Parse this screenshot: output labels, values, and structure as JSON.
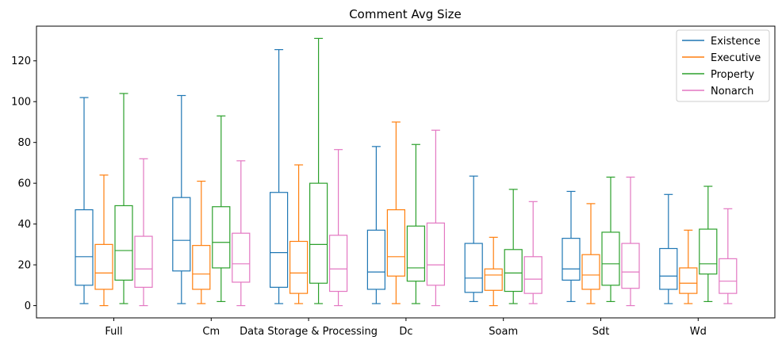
{
  "chart_data": {
    "type": "box",
    "title": "Comment Avg Size",
    "xlabel": "",
    "ylabel": "",
    "ylim": [
      -6,
      137
    ],
    "yticks": [
      0,
      20,
      40,
      60,
      80,
      100,
      120
    ],
    "ytick_labels": [
      "0",
      "20",
      "40",
      "60",
      "80",
      "100",
      "120"
    ],
    "categories": [
      "Full",
      "Cm",
      "Data Storage & Processing",
      "Dc",
      "Soam",
      "Sdt",
      "Wd"
    ],
    "grid": false,
    "legend_position": "top-right",
    "series": [
      {
        "name": "Existence",
        "color": "#1f77b4",
        "boxes": [
          {
            "whislo": 1,
            "q1": 10,
            "med": 24,
            "q3": 47,
            "whishi": 102
          },
          {
            "whislo": 1,
            "q1": 17,
            "med": 32,
            "q3": 53,
            "whishi": 103
          },
          {
            "whislo": 1,
            "q1": 9,
            "med": 26,
            "q3": 55.5,
            "whishi": 125.5
          },
          {
            "whislo": 1,
            "q1": 8,
            "med": 16.5,
            "q3": 37,
            "whishi": 78
          },
          {
            "whislo": 2,
            "q1": 6.5,
            "med": 13.5,
            "q3": 30.5,
            "whishi": 63.5
          },
          {
            "whislo": 2,
            "q1": 12.5,
            "med": 18,
            "q3": 33,
            "whishi": 56
          },
          {
            "whislo": 1,
            "q1": 8,
            "med": 14.5,
            "q3": 28,
            "whishi": 54.5
          }
        ]
      },
      {
        "name": "Executive",
        "color": "#ff7f0e",
        "boxes": [
          {
            "whislo": 0,
            "q1": 8,
            "med": 16,
            "q3": 30,
            "whishi": 64
          },
          {
            "whislo": 1,
            "q1": 8,
            "med": 15.5,
            "q3": 29.5,
            "whishi": 61
          },
          {
            "whislo": 1,
            "q1": 6,
            "med": 16,
            "q3": 31.5,
            "whishi": 69
          },
          {
            "whislo": 1,
            "q1": 14.5,
            "med": 24,
            "q3": 47,
            "whishi": 90
          },
          {
            "whislo": 0,
            "q1": 7.5,
            "med": 15,
            "q3": 18,
            "whishi": 33.5
          },
          {
            "whislo": 1,
            "q1": 8,
            "med": 15,
            "q3": 25,
            "whishi": 50
          },
          {
            "whislo": 1,
            "q1": 6,
            "med": 11,
            "q3": 18.5,
            "whishi": 37
          }
        ]
      },
      {
        "name": "Property",
        "color": "#2ca02c",
        "boxes": [
          {
            "whislo": 1,
            "q1": 12.5,
            "med": 27,
            "q3": 49,
            "whishi": 104
          },
          {
            "whislo": 2,
            "q1": 18.5,
            "med": 31,
            "q3": 48.5,
            "whishi": 93
          },
          {
            "whislo": 1,
            "q1": 11,
            "med": 30,
            "q3": 60,
            "whishi": 131
          },
          {
            "whislo": 1,
            "q1": 12,
            "med": 18.5,
            "q3": 39,
            "whishi": 79
          },
          {
            "whislo": 1,
            "q1": 7,
            "med": 16,
            "q3": 27.5,
            "whishi": 57
          },
          {
            "whislo": 2,
            "q1": 10,
            "med": 20.5,
            "q3": 36,
            "whishi": 63
          },
          {
            "whislo": 2,
            "q1": 15.5,
            "med": 20.5,
            "q3": 37.5,
            "whishi": 58.5
          }
        ]
      },
      {
        "name": "Nonarch",
        "color": "#e377c2",
        "boxes": [
          {
            "whislo": 0,
            "q1": 9,
            "med": 18,
            "q3": 34,
            "whishi": 72
          },
          {
            "whislo": 0,
            "q1": 11.5,
            "med": 20.5,
            "q3": 35.5,
            "whishi": 71
          },
          {
            "whislo": 0,
            "q1": 7,
            "med": 18,
            "q3": 34.5,
            "whishi": 76.5
          },
          {
            "whislo": 0,
            "q1": 10,
            "med": 20,
            "q3": 40.5,
            "whishi": 86
          },
          {
            "whislo": 1,
            "q1": 6,
            "med": 13,
            "q3": 24,
            "whishi": 51
          },
          {
            "whislo": 0,
            "q1": 8.5,
            "med": 16.5,
            "q3": 30.5,
            "whishi": 63
          },
          {
            "whislo": 1,
            "q1": 6,
            "med": 12,
            "q3": 23,
            "whishi": 47.5
          }
        ]
      }
    ]
  }
}
